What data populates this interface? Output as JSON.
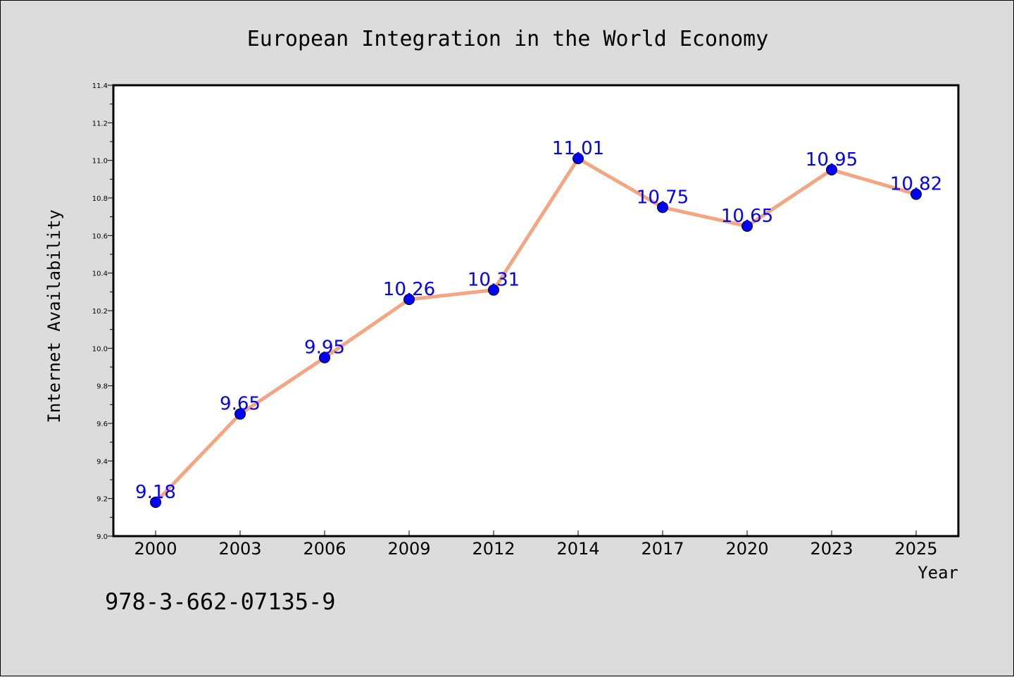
{
  "chart_data": {
    "type": "line",
    "title": "European Integration in the World Economy",
    "xlabel": "Year",
    "ylabel": "Internet Availability",
    "categories": [
      "2000",
      "2003",
      "2006",
      "2009",
      "2012",
      "2014",
      "2017",
      "2020",
      "2023",
      "2025"
    ],
    "series": [
      {
        "values": [
          9.18,
          9.65,
          9.95,
          10.26,
          10.31,
          11.01,
          10.75,
          10.65,
          10.95,
          10.82
        ],
        "line_color": "#f4a582",
        "marker_color": "#0000ff",
        "label_color": "#0000ff"
      }
    ],
    "ylim": [
      9.0,
      11.4
    ],
    "yticks": [
      "9.0",
      "9.2",
      "9.4",
      "9.6",
      "9.8",
      "10.0",
      "10.2",
      "10.4",
      "10.6",
      "10.8",
      "11.0",
      "11.2",
      "11.4"
    ],
    "grid": false,
    "legend": "none"
  },
  "footer_text": "978-3-662-07135-9"
}
